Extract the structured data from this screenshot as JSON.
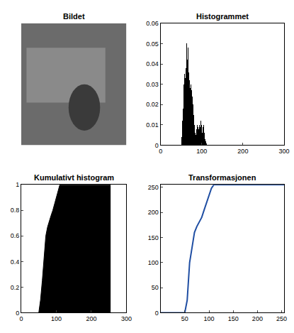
{
  "chart_data": [
    {
      "type": "image",
      "title": "Bildet",
      "tick_labels": false
    },
    {
      "type": "histogram",
      "title": "Histogrammet",
      "color": "#000000",
      "bins": [
        50,
        51,
        52,
        53,
        54,
        55,
        56,
        57,
        58,
        59,
        60,
        61,
        62,
        63,
        64,
        65,
        66,
        67,
        68,
        69,
        70,
        71,
        72,
        73,
        74,
        75,
        76,
        77,
        78,
        79,
        80,
        81,
        82,
        83,
        84,
        85,
        86,
        87,
        88,
        89,
        90,
        91,
        92,
        93,
        94,
        95,
        96,
        97,
        98,
        99,
        100,
        101,
        102,
        103,
        104,
        105,
        106,
        107,
        108,
        109,
        110,
        111,
        112
      ],
      "values": [
        0.002,
        0.004,
        0.008,
        0.012,
        0.018,
        0.025,
        0.03,
        0.028,
        0.035,
        0.033,
        0.04,
        0.038,
        0.045,
        0.05,
        0.047,
        0.042,
        0.048,
        0.04,
        0.036,
        0.038,
        0.032,
        0.034,
        0.028,
        0.03,
        0.025,
        0.027,
        0.022,
        0.024,
        0.02,
        0.018,
        0.015,
        0.012,
        0.01,
        0.008,
        0.006,
        0.005,
        0.006,
        0.008,
        0.007,
        0.01,
        0.009,
        0.012,
        0.008,
        0.011,
        0.01,
        0.007,
        0.009,
        0.012,
        0.008,
        0.01,
        0.011,
        0.006,
        0.009,
        0.007,
        0.01,
        0.008,
        0.006,
        0.004,
        0.003,
        0.002,
        0.002,
        0.001
      ],
      "xlim": [
        0,
        300
      ],
      "xticks": [
        0,
        100,
        200,
        300
      ],
      "ylim": [
        0,
        0.06
      ],
      "yticks": [
        0,
        0.01,
        0.02,
        0.03,
        0.04,
        0.05,
        0.06
      ]
    },
    {
      "type": "area",
      "title": "Kumulativt histogram",
      "color": "#000000",
      "x": [
        50,
        55,
        60,
        65,
        70,
        75,
        80,
        85,
        90,
        95,
        100,
        105,
        110,
        255
      ],
      "values": [
        0,
        0.1,
        0.25,
        0.45,
        0.6,
        0.67,
        0.72,
        0.76,
        0.8,
        0.85,
        0.9,
        0.96,
        1,
        1
      ],
      "xlim": [
        0,
        300
      ],
      "xticks": [
        0,
        100,
        200,
        300
      ],
      "ylim": [
        0,
        1
      ],
      "yticks": [
        0,
        0.2,
        0.4,
        0.6,
        0.8,
        1
      ]
    },
    {
      "type": "line",
      "title": "Transformasjonen",
      "color": "#1f4ea3",
      "x": [
        0,
        50,
        55,
        60,
        65,
        70,
        75,
        80,
        85,
        90,
        95,
        100,
        105,
        110,
        255
      ],
      "values": [
        0,
        0,
        25,
        100,
        130,
        160,
        172,
        180,
        190,
        205,
        220,
        235,
        248,
        255,
        255
      ],
      "xlim": [
        0,
        255
      ],
      "xticks": [
        50,
        100,
        150,
        200,
        250
      ],
      "ylim": [
        0,
        255
      ],
      "yticks": [
        0,
        50,
        100,
        150,
        200,
        250
      ]
    }
  ]
}
